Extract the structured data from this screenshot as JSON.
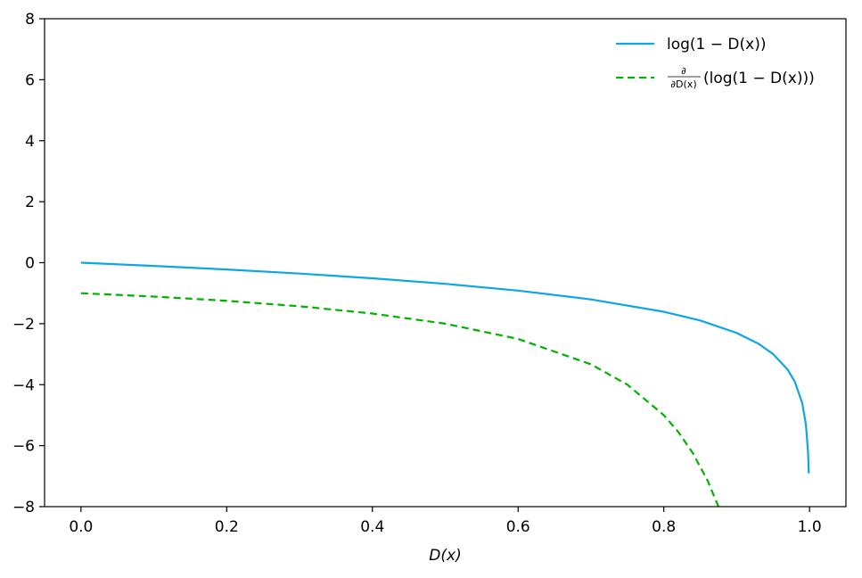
{
  "chart_data": {
    "type": "line",
    "title": "",
    "xlabel": "D(x)",
    "ylabel": "",
    "xlim": [
      -0.05,
      1.05
    ],
    "ylim": [
      -8,
      8
    ],
    "xticks": [
      0.0,
      0.2,
      0.4,
      0.6,
      0.8,
      1.0
    ],
    "xtick_labels": [
      "0.0",
      "0.2",
      "0.4",
      "0.6",
      "0.8",
      "1.0"
    ],
    "yticks": [
      -8,
      -6,
      -4,
      -2,
      0,
      2,
      4,
      6,
      8
    ],
    "ytick_labels": [
      "−8",
      "−6",
      "−4",
      "−2",
      "0",
      "2",
      "4",
      "6",
      "8"
    ],
    "grid": false,
    "legend_position": "top-right",
    "series": [
      {
        "name": "log(1 − D(x))",
        "color": "#0ea5e9",
        "style": "solid",
        "x": [
          0.0,
          0.1,
          0.2,
          0.3,
          0.4,
          0.5,
          0.6,
          0.7,
          0.8,
          0.85,
          0.9,
          0.93,
          0.95,
          0.97,
          0.98,
          0.99,
          0.995,
          0.998,
          0.999
        ],
        "y": [
          0.0,
          -0.105,
          -0.223,
          -0.357,
          -0.511,
          -0.693,
          -0.916,
          -1.204,
          -1.609,
          -1.897,
          -2.303,
          -2.659,
          -2.996,
          -3.507,
          -3.912,
          -4.605,
          -5.298,
          -6.215,
          -6.908
        ]
      },
      {
        "name": "∂/∂D(x) (log(1 − D(x)))",
        "color": "#00b300",
        "style": "dashed",
        "x": [
          0.0,
          0.1,
          0.2,
          0.3,
          0.4,
          0.5,
          0.6,
          0.7,
          0.75,
          0.8,
          0.82,
          0.84,
          0.86,
          0.875
        ],
        "y": [
          -1.0,
          -1.111,
          -1.25,
          -1.429,
          -1.667,
          -2.0,
          -2.5,
          -3.333,
          -4.0,
          -5.0,
          -5.556,
          -6.25,
          -7.143,
          -8.0
        ]
      }
    ]
  }
}
